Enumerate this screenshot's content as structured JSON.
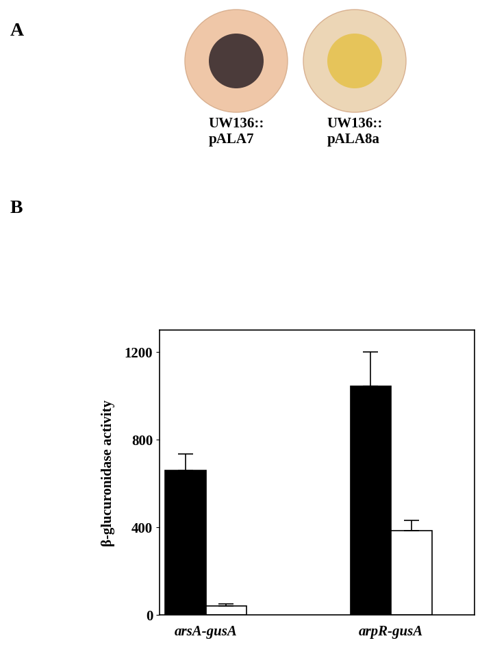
{
  "panel_labels": [
    "A",
    "B"
  ],
  "plates": [
    "UW136::\npALA7",
    "UW136::\npALA8a"
  ],
  "chart_data": {
    "type": "bar",
    "y_label": "β-glucuronidase activity",
    "categories": [
      "arsA-gusA",
      "arpR-gusA"
    ],
    "series": [
      {
        "color": "#000000",
        "values": [
          660,
          1045
        ],
        "errors": [
          75,
          155
        ]
      },
      {
        "color": "#ffffff",
        "values": [
          40,
          385
        ],
        "errors": [
          10,
          45
        ]
      }
    ],
    "ylim": [
      0,
      1300
    ],
    "yticks": [
      0,
      400,
      800,
      1200
    ],
    "grid": false
  }
}
